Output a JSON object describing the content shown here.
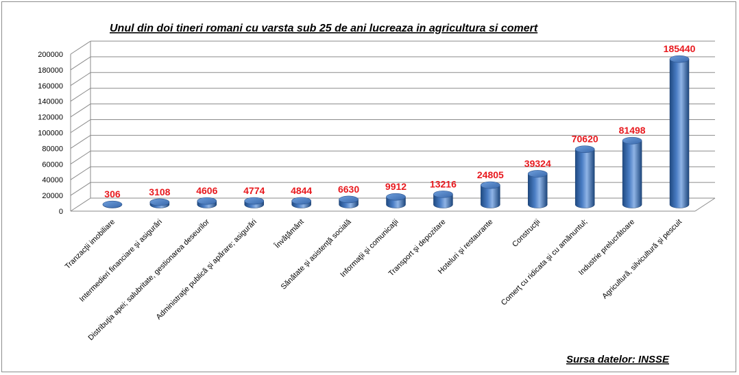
{
  "chart_data": {
    "type": "bar",
    "title": "Unul din doi tineri romani cu varsta sub 25 de ani lucreaza in agricultura si comert",
    "source": "Sursa datelor: INSSE",
    "categories": [
      "Tranzacţii imobiliare",
      "Intermedieri financiare şi asigurări",
      "Distribuţia apei; salubritate, gestionarea deseurilor",
      "Administraţie publică şi apărare; asigurări",
      "Învăţământ",
      "Sănătate şi asistenţă socială",
      "Informaţii şi comunicaţii",
      "Transport şi depozitare",
      "Hoteluri şi restaurante",
      "Construcţii",
      "Comerţ cu ridicata şi cu amănuntul;",
      "Industrie prelucrătoare",
      "Agricultură, silvicultură şi pescuit"
    ],
    "values": [
      306,
      3108,
      4606,
      4774,
      4844,
      6630,
      9912,
      13216,
      24805,
      39324,
      70620,
      81498,
      185440
    ],
    "data_labels": [
      "306",
      "3108",
      "4606",
      "4774",
      "4844",
      "6630",
      "9912",
      "13216",
      "24805",
      "39324",
      "70620",
      "81498",
      "185440"
    ],
    "ylim": [
      0,
      200000
    ],
    "yticks": [
      "0",
      "20000",
      "40000",
      "60000",
      "80000",
      "100000",
      "120000",
      "140000",
      "160000",
      "180000",
      "200000"
    ],
    "grid": true,
    "legend": "none",
    "style": "3d-cylinder",
    "colors": {
      "bar_dark": "#1f4a82",
      "bar_mid": "#4a7dc4",
      "bar_light": "#8fb4e6",
      "data_label": "#e8191e",
      "grid": "#8a8a8a",
      "axis": "#8a8a8a"
    }
  }
}
